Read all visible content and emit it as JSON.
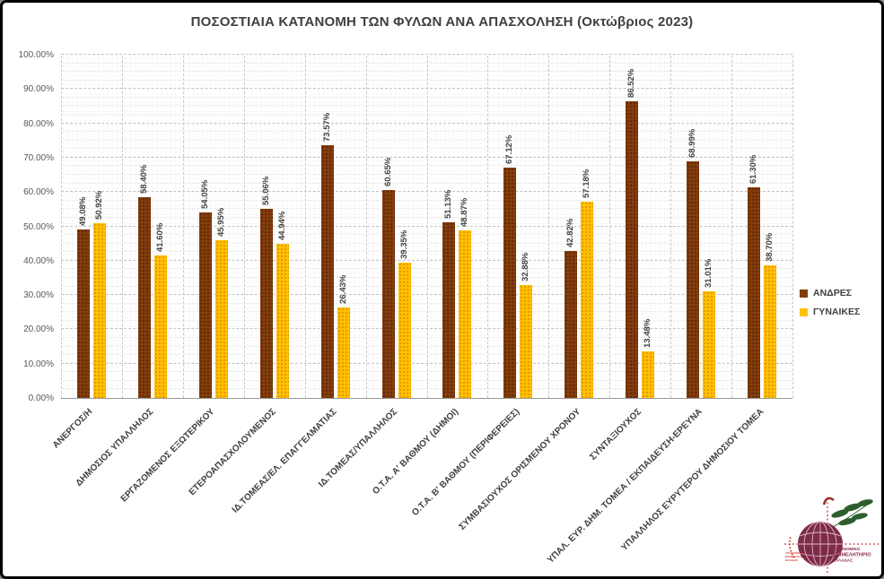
{
  "chart_data": {
    "type": "bar",
    "title": "ΠΟΣΟΣΤΙΑΙΑ ΚΑΤΑΝΟΜΗ ΤΩΝ ΦΥΛΩΝ ΑΝΑ ΑΠΑΣΧΟΛΗΣΗ (Οκτώβριος 2023)",
    "categories": [
      "ΑΝΕΡΓΟΣ/Η",
      "ΔΗΜΟΣΙΟΣ ΥΠΑΛΛΗΛΟΣ",
      "ΕΡΓΑΖΟΜΕΝΟΣ ΕΞΩΤΕΡΙΚΟΥ",
      "ΕΤΕΡΟΑΠΑΣΧΟΛΟΥΜΕΝΟΣ",
      "ΙΔ.ΤΟΜΕΑΣ/ΕΛ. ΕΠΑΓΓΕΛΜΑΤΙΑΣ",
      "ΙΔ.ΤΟΜΕΑΣ/ΥΠΑΛΛΗΛΟΣ",
      "Ο.Τ.Α. Α' ΒΑΘΜΟΥ (ΔΗΜΟΙ)",
      "Ο.Τ.Α. Β' ΒΑΘΜΟΥ (ΠΕΡΙΦΕΡΕΙΕΣ)",
      "ΣΥΜΒΑΣΙΟΥΧΟΣ ΟΡΙΣΜΕΝΟΥ ΧΡΟΝΟΥ",
      "ΣΥΝΤΑΞΙΟΥΧΟΣ",
      "ΥΠΑΛ. ΕΥΡ. ΔΗΜ. ΤΟΜΕΑ / ΕΚΠΑΙΔΕΥΣΗ-ΕΡΕΥΝΑ",
      "ΥΠΑΛΛΗΛΟΣ ΕΥΡΥΤΕΡΟΥ ΔΗΜΟΣΙΟΥ ΤΟΜΕΑ"
    ],
    "series": [
      {
        "name": "ΑΝΔΡΕΣ",
        "color": "#843C0C",
        "values": [
          49.08,
          58.4,
          54.05,
          55.06,
          73.57,
          60.65,
          51.13,
          67.12,
          42.82,
          86.52,
          68.99,
          61.3
        ]
      },
      {
        "name": "ΓΥΝΑΙΚΕΣ",
        "color": "#FFC000",
        "values": [
          50.92,
          41.6,
          45.95,
          44.94,
          26.43,
          39.35,
          48.87,
          32.88,
          57.18,
          13.48,
          31.01,
          38.7
        ]
      }
    ],
    "ylabel": "",
    "xlabel": "",
    "ylim": [
      0,
      100
    ],
    "y_tick_step": 10,
    "y_minor_step": 2.5,
    "value_label_format": "0.00%",
    "grid": true,
    "legend_position": "right"
  },
  "legend": {
    "items": [
      {
        "label": "ΑΝΔΡΕΣ",
        "color": "#843C0C"
      },
      {
        "label": "ΓΥΝΑΙΚΕΣ",
        "color": "#FFC000"
      }
    ]
  },
  "logo": {
    "org_line1": "ΟΙΚΟΝΟΜΙΚΟ",
    "org_line2": "ΕΠΙΜΕΛΗΤΗΡΙΟ",
    "org_line3": "ΕΛΛΑΔΑΣ",
    "small_line1": "ΟΙΚΟΝΟΜΙΚΟ",
    "small_line2": "ΕΠΙΜΕΛΗΤΗΡΙΟ",
    "small_line3": "ΕΛΛΑΔΟΣ"
  },
  "colors": {
    "title_text": "#404040",
    "axis_text": "#595959",
    "grid_major": "#c3c3c3",
    "logo_maroon": "#7c2b49",
    "logo_red": "#c00000",
    "logo_green": "#2c5f2d"
  }
}
